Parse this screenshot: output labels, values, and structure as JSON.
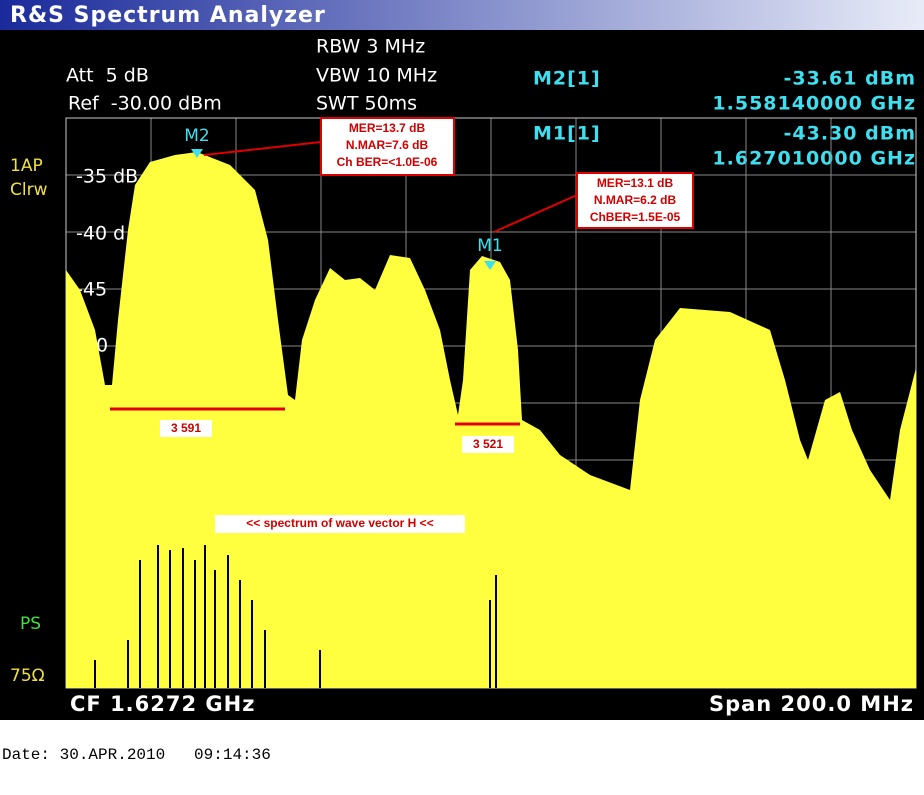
{
  "title": "R&S Spectrum Analyzer",
  "settings": {
    "att": "Att  5 dB",
    "ref": "Ref  -30.00 dBm",
    "rbw": "RBW 3 MHz",
    "vbw": "VBW 10 MHz",
    "swt": "SWT 50ms"
  },
  "markers_readout": [
    {
      "name": "M2[1]",
      "level": "-33.61 dBm",
      "freq": "1.558140000 GHz"
    },
    {
      "name": "M1[1]",
      "level": "-43.30 dBm",
      "freq": "1.627010000 GHz"
    }
  ],
  "side_labels": {
    "trace": "1AP",
    "mode": "Clrw",
    "ps": "PS",
    "impedance": "75Ω"
  },
  "y_labels": [
    "-35 dB",
    "-40 d",
    "-45",
    "0"
  ],
  "markers": [
    "M2",
    "M1"
  ],
  "annotations": {
    "m2_box": [
      "MER=13.7 dB",
      "N.MAR=7.6 dB",
      "Ch BER=<1.0E-06"
    ],
    "m1_box": [
      "MER=13.1 dB",
      "N.MAR=6.2 dB",
      "ChBER=1.5E-05"
    ],
    "bw1": "3 591",
    "bw2": "3 521",
    "caption": "<< spectrum of wave vector H <<"
  },
  "footer": {
    "cf": "CF 1.6272 GHz",
    "span": "Span 200.0 MHz"
  },
  "date": "Date: 30.APR.2010   09:14:36"
}
